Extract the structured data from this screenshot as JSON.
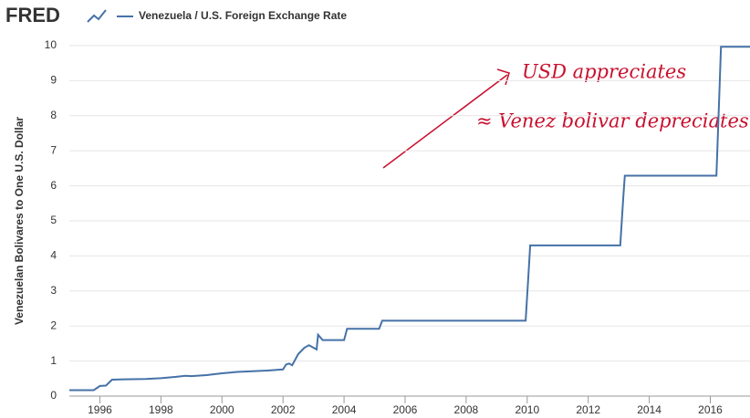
{
  "chart_data": {
    "type": "line",
    "logo": "FRED",
    "ylabel": "Venezuelan Bolivares to One U.S. Dollar",
    "annotations": [
      "USD appreciates",
      "≈ Venez bolivar depreciates"
    ],
    "x": [
      1995.0,
      1995.8,
      1996.0,
      1996.2,
      1996.4,
      1996.8,
      1997.5,
      1998.0,
      1998.5,
      1998.8,
      1999.0,
      1999.5,
      2000.0,
      2000.5,
      2001.0,
      2001.5,
      2002.0,
      2002.1,
      2002.2,
      2002.3,
      2002.5,
      2002.7,
      2002.85,
      2003.0,
      2003.1,
      2003.15,
      2003.3,
      2004.0,
      2004.1,
      2005.15,
      2005.25,
      2009.95,
      2010.05,
      2010.1,
      2013.05,
      2013.15,
      2013.2,
      2016.2,
      2016.3,
      2016.35,
      2017.3
    ],
    "series": [
      {
        "name": "Venezuela / U.S. Foreign Exchange Rate",
        "color": "#4572a7",
        "values": [
          0.17,
          0.17,
          0.29,
          0.3,
          0.47,
          0.48,
          0.49,
          0.51,
          0.55,
          0.58,
          0.57,
          0.6,
          0.65,
          0.69,
          0.71,
          0.73,
          0.76,
          0.9,
          0.93,
          0.88,
          1.2,
          1.38,
          1.45,
          1.38,
          1.33,
          1.75,
          1.6,
          1.6,
          1.92,
          1.92,
          2.15,
          2.15,
          3.6,
          4.3,
          4.3,
          5.7,
          6.29,
          6.29,
          8.7,
          9.97,
          9.97
        ]
      }
    ],
    "xlim": [
      1995.0,
      2017.3
    ],
    "xticks": [
      1996,
      1998,
      2000,
      2002,
      2004,
      2006,
      2008,
      2010,
      2012,
      2014,
      2016
    ],
    "ylim": [
      0,
      10
    ],
    "yticks": [
      0,
      1,
      2,
      3,
      4,
      5,
      6,
      7,
      8,
      9,
      10
    ],
    "grid": true
  }
}
